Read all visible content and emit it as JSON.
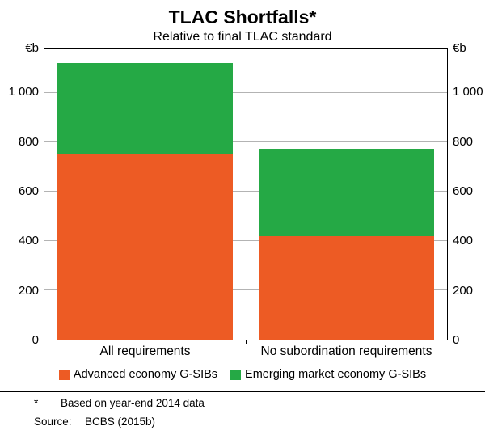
{
  "chart_data": {
    "type": "bar",
    "stacked": true,
    "title": "TLAC Shortfalls*",
    "subtitle": "Relative to final TLAC standard",
    "unit": "€b",
    "ylim": [
      0,
      1180
    ],
    "grid": true,
    "legend_position": "bottom",
    "yticks": [
      {
        "value": 0,
        "label": "0"
      },
      {
        "value": 200,
        "label": "200"
      },
      {
        "value": 400,
        "label": "400"
      },
      {
        "value": 600,
        "label": "600"
      },
      {
        "value": 800,
        "label": "800"
      },
      {
        "value": 1000,
        "label": "1 000"
      }
    ],
    "categories": [
      "All requirements",
      "No subordination requirements"
    ],
    "series": [
      {
        "name": "Advanced economy G-SIBs",
        "color": "#ED5B24",
        "values": [
          755,
          420
        ]
      },
      {
        "name": "Emerging market economy G-SIBs",
        "color": "#25A945",
        "values": [
          365,
          355
        ]
      }
    ],
    "totals": [
      1120,
      775
    ]
  },
  "footnote": {
    "marker": "*",
    "text": "Based on year-end 2014 data"
  },
  "source": {
    "label": "Source:",
    "value": "BCBS (2015b)"
  }
}
